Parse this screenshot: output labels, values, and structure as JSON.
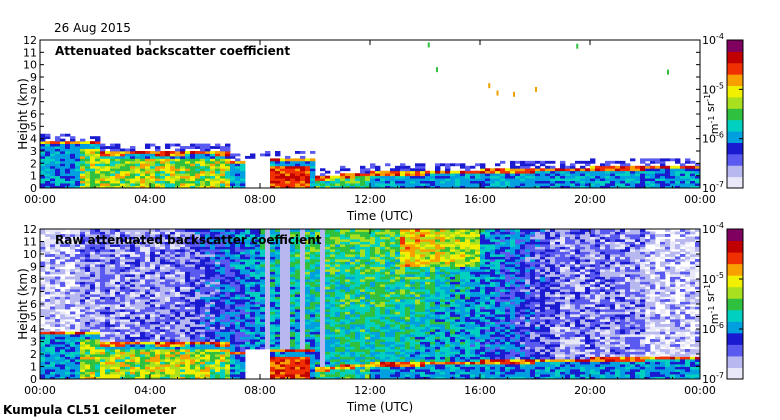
{
  "date_label": "26 Aug 2015",
  "footer_label": "Kumpula CL51 ceilometer",
  "colormap": [
    "#e8e8f8",
    "#b8b8f0",
    "#5a5af0",
    "#1a1ad0",
    "#00a0e0",
    "#00d0c0",
    "#30c040",
    "#a8e020",
    "#f0f000",
    "#f8a000",
    "#f03000",
    "#c00000",
    "#800060"
  ],
  "chart_data": [
    {
      "type": "heatmap",
      "title": "Attenuated backscatter coefficient",
      "xlabel": "Time (UTC)",
      "ylabel": "Height (km)",
      "xticks": [
        "00:00",
        "04:00",
        "08:00",
        "12:00",
        "16:00",
        "20:00",
        "00:00"
      ],
      "xlim_hours": [
        0,
        24
      ],
      "ylim_km": [
        0,
        12
      ],
      "yticks": [
        "0",
        "1",
        "2",
        "3",
        "4",
        "5",
        "6",
        "7",
        "8",
        "9",
        "10",
        "11",
        "12"
      ],
      "colorbar": {
        "ticks": [
          "10-7",
          "10-6",
          "10-5",
          "10-4"
        ],
        "tick_values": [
          -7,
          -6,
          -5,
          -4
        ],
        "label": "m-1 sr-1"
      },
      "noise_level": 0
    },
    {
      "type": "heatmap",
      "title": "Raw attenuated backscatter coefficient",
      "xlabel": "Time (UTC)",
      "ylabel": "Height (km)",
      "xticks": [
        "00:00",
        "04:00",
        "08:00",
        "12:00",
        "16:00",
        "20:00",
        "00:00"
      ],
      "xlim_hours": [
        0,
        24
      ],
      "ylim_km": [
        0,
        12
      ],
      "yticks": [
        "0",
        "1",
        "2",
        "3",
        "4",
        "5",
        "6",
        "7",
        "8",
        "9",
        "10",
        "11",
        "12"
      ],
      "colorbar": {
        "ticks": [
          "10-7",
          "10-6",
          "10-5",
          "10-4"
        ],
        "tick_values": [
          -7,
          -6,
          -5,
          -4
        ],
        "label": "m-1 sr-1"
      },
      "noise_level": 1
    }
  ]
}
